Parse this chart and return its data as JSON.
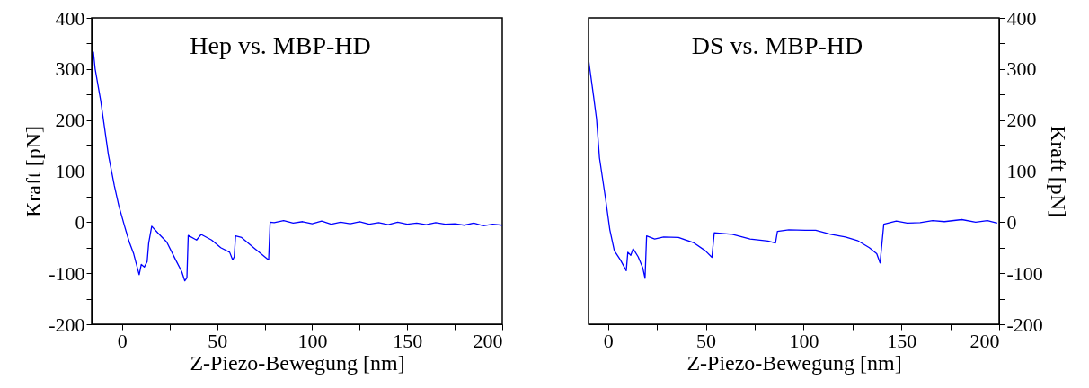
{
  "chart_data": [
    {
      "type": "line",
      "annotations": [
        "Hep vs. MBP-HD"
      ],
      "xlabel": "Z-Piezo-Bewegung [nm]",
      "ylabel": "Kraft [pN]",
      "xlim": [
        -16,
        200
      ],
      "ylim": [
        -200,
        400
      ],
      "xticks": [
        0,
        {
          "value": 25,
          "label": null
        },
        50,
        {
          "value": 75,
          "label": null
        },
        100,
        {
          "value": 125,
          "label": null
        },
        150,
        {
          "value": 175,
          "label": null
        },
        200
      ],
      "yticks": [
        -200,
        {
          "value": -150,
          "label": null
        },
        -100,
        {
          "value": -50,
          "label": null
        },
        0,
        {
          "value": 50,
          "label": null
        },
        100,
        {
          "value": 150,
          "label": null
        },
        200,
        {
          "value": 250,
          "label": null
        },
        300,
        {
          "value": 350,
          "label": null
        },
        400
      ],
      "series": [
        {
          "color": "#0000ff",
          "x": [
            -15.1,
            -14.2,
            -11.2,
            -7.2,
            -4.1,
            -1.7,
            1.4,
            3.8,
            6.1,
            9.0,
            10.1,
            11.7,
            13.2,
            14.0,
            15.6,
            18.8,
            23.5,
            28.2,
            31.4,
            33.0,
            34.1,
            34.8,
            39.2,
            41.6,
            47.1,
            51.9,
            56.6,
            58.2,
            59.0,
            59.7,
            62.9,
            69.2,
            77.1,
            77.9,
            80,
            85,
            90,
            95,
            100,
            105,
            110,
            115,
            120,
            125,
            130,
            135,
            140,
            145,
            150,
            155,
            160,
            165,
            170,
            175,
            180,
            185,
            190,
            195,
            200
          ],
          "values": [
            334,
            301,
            237,
            132,
            72,
            32,
            -9,
            -39,
            -62,
            -103,
            -83,
            -88,
            -77,
            -41,
            -8,
            -21,
            -39,
            -74,
            -97,
            -115,
            -109,
            -26,
            -35,
            -24,
            -35,
            -50,
            -59,
            -74,
            -68,
            -27,
            -30,
            -50,
            -74,
            0,
            -1,
            3,
            -2,
            1,
            -3,
            2,
            -4,
            0,
            -3,
            1,
            -4,
            -1,
            -5,
            0,
            -4,
            -2,
            -5,
            -1,
            -4,
            -3,
            -6,
            -2,
            -7,
            -4,
            -6
          ]
        }
      ]
    },
    {
      "type": "line",
      "annotations": [
        "DS vs. MBP-HD"
      ],
      "xlabel": "Z-Piezo-Bewegung [nm]",
      "y2label": "Kraft [pN]",
      "xlim": [
        -10,
        200
      ],
      "y2lim": [
        -200,
        400
      ],
      "xticks": [
        0,
        {
          "value": 25,
          "label": null
        },
        50,
        {
          "value": 75,
          "label": null
        },
        100,
        {
          "value": 125,
          "label": null
        },
        150,
        {
          "value": 175,
          "label": null
        },
        200
      ],
      "y2ticks": [
        -200,
        {
          "value": -150,
          "label": null
        },
        -100,
        {
          "value": -50,
          "label": null
        },
        0,
        {
          "value": 50,
          "label": null
        },
        100,
        {
          "value": 150,
          "label": null
        },
        200,
        {
          "value": 250,
          "label": null
        },
        300,
        {
          "value": 350,
          "label": null
        },
        400
      ],
      "series": [
        {
          "color": "#0000ff",
          "axis": "y2",
          "x": [
            -10,
            -7.5,
            -5.9,
            -4.4,
            -1.4,
            0.9,
            3.2,
            6.3,
            9.3,
            10.1,
            11.6,
            12.8,
            15.4,
            17.7,
            18.9,
            19.7,
            23.8,
            28.4,
            36.0,
            43.6,
            49.7,
            53.1,
            54.3,
            63.5,
            72.6,
            81.8,
            85.6,
            86.6,
            92.4,
            100.8,
            106.2,
            113.8,
            121.4,
            127.5,
            133.6,
            137.4,
            139.1,
            141.0,
            147.4,
            153,
            159.6,
            166,
            172,
            180.9,
            188,
            194,
            199
          ],
          "values": [
            319,
            249,
            202,
            126,
            49,
            -15,
            -56,
            -74,
            -95,
            -59,
            -65,
            -52,
            -68,
            -89,
            -110,
            -27,
            -33,
            -29,
            -30,
            -40,
            -56,
            -69,
            -21,
            -24,
            -33,
            -37,
            -41,
            -18,
            -15,
            -16,
            -16,
            -24,
            -29,
            -36,
            -50,
            -62,
            -80,
            -4,
            2,
            -2,
            -1,
            3,
            1,
            5,
            0,
            3,
            -2
          ]
        }
      ]
    }
  ]
}
